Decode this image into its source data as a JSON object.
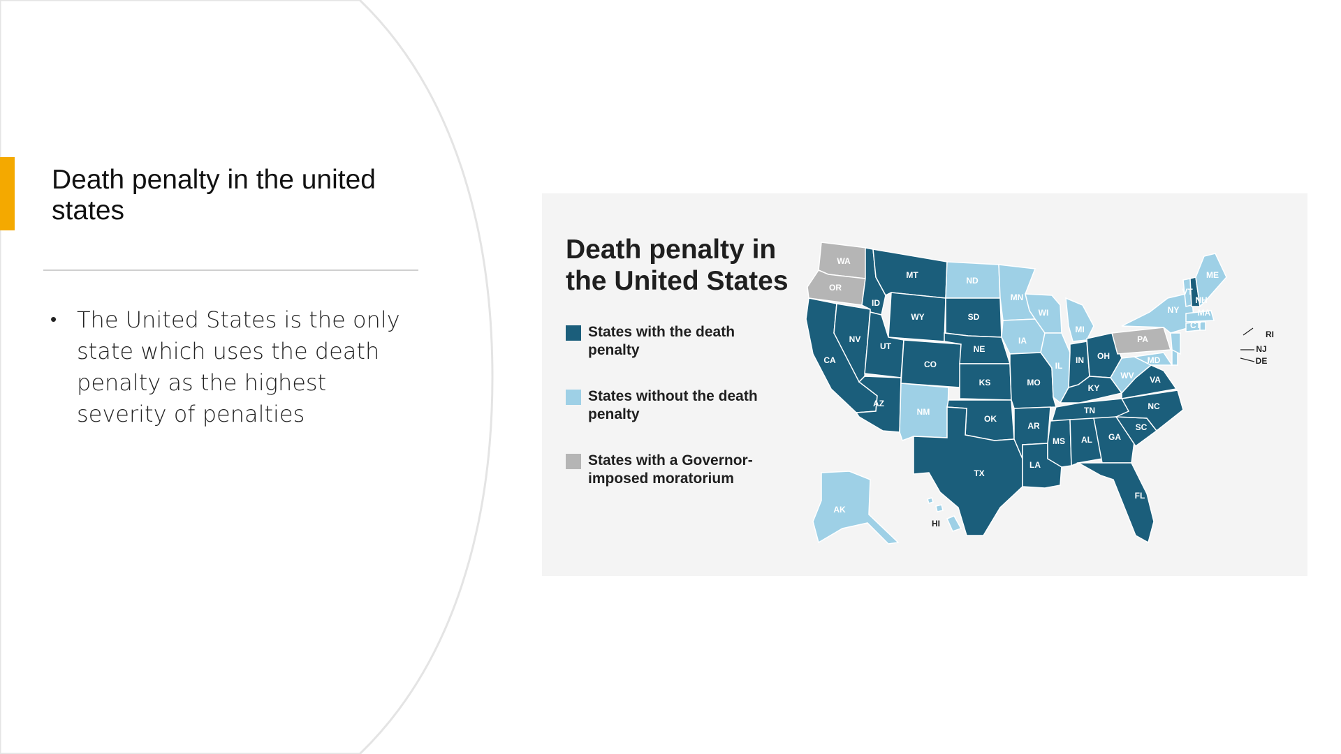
{
  "slide": {
    "title": "Death penalty in the united states",
    "bullets": [
      "The United States is the only state which uses the death penalty as the highest severity of penalties"
    ],
    "accent_color": "#f4a900"
  },
  "map": {
    "heading": "Death penalty in the United States",
    "legend": [
      {
        "label": "States with the death penalty",
        "color": "#1b5e7b"
      },
      {
        "label": "States without the death penalty",
        "color": "#9ed0e6"
      },
      {
        "label": "States with a Governor-imposed moratorium",
        "color": "#b5b5b5"
      }
    ],
    "colors": {
      "with": "#1b5e7b",
      "without": "#9ed0e6",
      "moratorium": "#b5b5b5"
    },
    "states": [
      {
        "abbr": "WA",
        "status": "moratorium"
      },
      {
        "abbr": "OR",
        "status": "moratorium"
      },
      {
        "abbr": "CA",
        "status": "with"
      },
      {
        "abbr": "NV",
        "status": "with"
      },
      {
        "abbr": "ID",
        "status": "with"
      },
      {
        "abbr": "MT",
        "status": "with"
      },
      {
        "abbr": "WY",
        "status": "with"
      },
      {
        "abbr": "UT",
        "status": "with"
      },
      {
        "abbr": "AZ",
        "status": "with"
      },
      {
        "abbr": "CO",
        "status": "with"
      },
      {
        "abbr": "NM",
        "status": "without"
      },
      {
        "abbr": "ND",
        "status": "without"
      },
      {
        "abbr": "SD",
        "status": "with"
      },
      {
        "abbr": "NE",
        "status": "with"
      },
      {
        "abbr": "KS",
        "status": "with"
      },
      {
        "abbr": "OK",
        "status": "with"
      },
      {
        "abbr": "TX",
        "status": "with"
      },
      {
        "abbr": "MN",
        "status": "without"
      },
      {
        "abbr": "IA",
        "status": "without"
      },
      {
        "abbr": "MO",
        "status": "with"
      },
      {
        "abbr": "AR",
        "status": "with"
      },
      {
        "abbr": "LA",
        "status": "with"
      },
      {
        "abbr": "WI",
        "status": "without"
      },
      {
        "abbr": "IL",
        "status": "without"
      },
      {
        "abbr": "MI",
        "status": "without"
      },
      {
        "abbr": "IN",
        "status": "with"
      },
      {
        "abbr": "OH",
        "status": "with"
      },
      {
        "abbr": "KY",
        "status": "with"
      },
      {
        "abbr": "TN",
        "status": "with"
      },
      {
        "abbr": "MS",
        "status": "with"
      },
      {
        "abbr": "AL",
        "status": "with"
      },
      {
        "abbr": "GA",
        "status": "with"
      },
      {
        "abbr": "FL",
        "status": "with"
      },
      {
        "abbr": "SC",
        "status": "with"
      },
      {
        "abbr": "NC",
        "status": "with"
      },
      {
        "abbr": "VA",
        "status": "with"
      },
      {
        "abbr": "WV",
        "status": "without"
      },
      {
        "abbr": "PA",
        "status": "moratorium"
      },
      {
        "abbr": "NY",
        "status": "without"
      },
      {
        "abbr": "MD",
        "status": "without"
      },
      {
        "abbr": "DE",
        "status": "without"
      },
      {
        "abbr": "NJ",
        "status": "without"
      },
      {
        "abbr": "CT",
        "status": "without"
      },
      {
        "abbr": "RI",
        "status": "without"
      },
      {
        "abbr": "MA",
        "status": "without"
      },
      {
        "abbr": "VT",
        "status": "without"
      },
      {
        "abbr": "NH",
        "status": "with"
      },
      {
        "abbr": "ME",
        "status": "without"
      },
      {
        "abbr": "AK",
        "status": "without"
      },
      {
        "abbr": "HI",
        "status": "without"
      }
    ]
  }
}
